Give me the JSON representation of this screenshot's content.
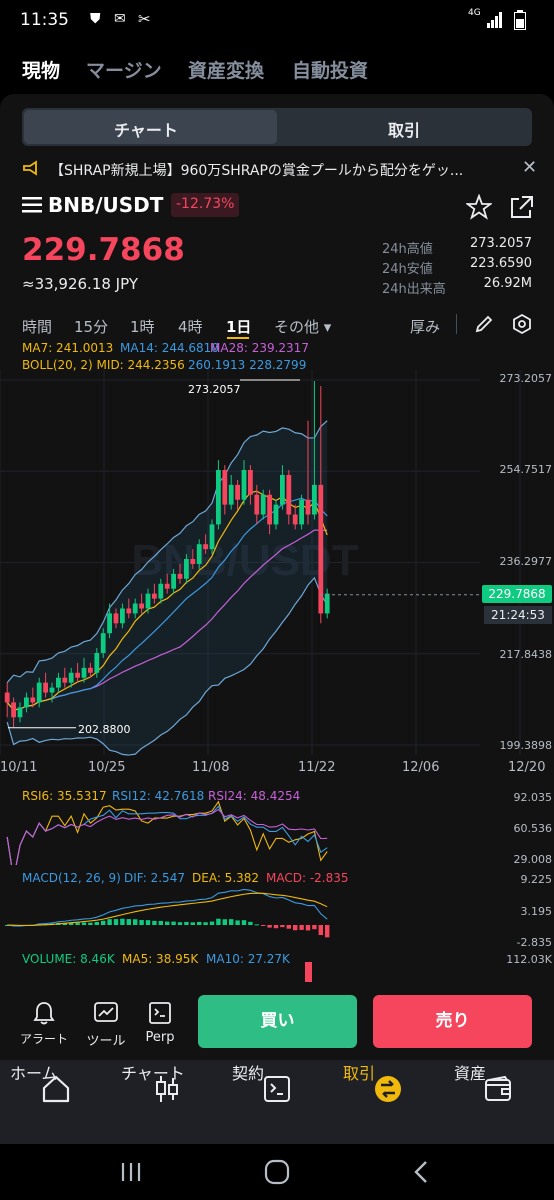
{
  "status_bar": {
    "time": "11:35",
    "network": "4G"
  },
  "top_tabs": [
    "現物",
    "マージン",
    "資産変換",
    "自動投資"
  ],
  "segment": {
    "chart": "チャート",
    "trade": "取引"
  },
  "announcement": "【SHRAP新規上場】960万SHRAPの賞金プールから配分をゲッ...",
  "pair": {
    "symbol": "BNB/USDT",
    "change": "-12.73%",
    "price": "229.7868",
    "jpy": "≈33,926.18 JPY"
  },
  "stats": [
    {
      "label": "24h高値",
      "value": "273.2057"
    },
    {
      "label": "24h安値",
      "value": "223.6590"
    },
    {
      "label": "24h出来高",
      "value": "26.92M"
    }
  ],
  "timeframes": [
    "時間",
    "15分",
    "1時",
    "4時",
    "1日",
    "その他 ▾"
  ],
  "depth_label": "厚み",
  "ma_line": {
    "ma7": "MA7: 241.0013",
    "ma14": "MA14: 244.6810",
    "ma28": "MA28: 239.2317"
  },
  "boll_line": {
    "label": "BOLL(20, 2) MID: 244.2356",
    "bands": "260.1913 228.2799"
  },
  "chart_data": {
    "type": "candlestick",
    "y_ticks": [
      "273.2057",
      "254.7517",
      "236.2977",
      "217.8438",
      "199.3898"
    ],
    "x_ticks": [
      "10/11",
      "10/25",
      "11/08",
      "11/22",
      "12/06",
      "12/20"
    ],
    "high_marker": "273.2057",
    "low_marker": "202.8800",
    "last_price": "229.7868",
    "countdown": "21:24:53",
    "watermark": "BNB/USDT",
    "candles": [
      {
        "o": 210,
        "c": 208,
        "h": 212,
        "l": 205
      },
      {
        "o": 208,
        "c": 205,
        "h": 209,
        "l": 203
      },
      {
        "o": 205,
        "c": 207,
        "h": 208,
        "l": 204
      },
      {
        "o": 207,
        "c": 209,
        "h": 210,
        "l": 206
      },
      {
        "o": 209,
        "c": 208,
        "h": 211,
        "l": 207
      },
      {
        "o": 208,
        "c": 212,
        "h": 213,
        "l": 207
      },
      {
        "o": 212,
        "c": 210,
        "h": 214,
        "l": 209
      },
      {
        "o": 210,
        "c": 211,
        "h": 212,
        "l": 208
      },
      {
        "o": 211,
        "c": 213,
        "h": 214,
        "l": 210
      },
      {
        "o": 213,
        "c": 212,
        "h": 215,
        "l": 211
      },
      {
        "o": 212,
        "c": 214,
        "h": 215,
        "l": 211
      },
      {
        "o": 214,
        "c": 213,
        "h": 216,
        "l": 212
      },
      {
        "o": 213,
        "c": 215,
        "h": 217,
        "l": 212
      },
      {
        "o": 215,
        "c": 214,
        "h": 216,
        "l": 213
      },
      {
        "o": 214,
        "c": 218,
        "h": 219,
        "l": 213
      },
      {
        "o": 218,
        "c": 222,
        "h": 223,
        "l": 217
      },
      {
        "o": 222,
        "c": 226,
        "h": 228,
        "l": 221
      },
      {
        "o": 226,
        "c": 224,
        "h": 227,
        "l": 223
      },
      {
        "o": 224,
        "c": 227,
        "h": 228,
        "l": 223
      },
      {
        "o": 227,
        "c": 226,
        "h": 229,
        "l": 225
      },
      {
        "o": 226,
        "c": 228,
        "h": 229,
        "l": 225
      },
      {
        "o": 228,
        "c": 227,
        "h": 230,
        "l": 226
      },
      {
        "o": 227,
        "c": 230,
        "h": 231,
        "l": 226
      },
      {
        "o": 230,
        "c": 229,
        "h": 232,
        "l": 228
      },
      {
        "o": 229,
        "c": 232,
        "h": 233,
        "l": 228
      },
      {
        "o": 232,
        "c": 231,
        "h": 234,
        "l": 230
      },
      {
        "o": 231,
        "c": 234,
        "h": 235,
        "l": 230
      },
      {
        "o": 234,
        "c": 233,
        "h": 236,
        "l": 232
      },
      {
        "o": 233,
        "c": 237,
        "h": 238,
        "l": 232
      },
      {
        "o": 237,
        "c": 236,
        "h": 239,
        "l": 235
      },
      {
        "o": 236,
        "c": 240,
        "h": 241,
        "l": 235
      },
      {
        "o": 240,
        "c": 239,
        "h": 242,
        "l": 238
      },
      {
        "o": 239,
        "c": 244,
        "h": 245,
        "l": 238
      },
      {
        "o": 244,
        "c": 255,
        "h": 257,
        "l": 243
      },
      {
        "o": 255,
        "c": 248,
        "h": 256,
        "l": 246
      },
      {
        "o": 248,
        "c": 252,
        "h": 254,
        "l": 247
      },
      {
        "o": 252,
        "c": 249,
        "h": 253,
        "l": 247
      },
      {
        "o": 249,
        "c": 255,
        "h": 257,
        "l": 248
      },
      {
        "o": 255,
        "c": 250,
        "h": 256,
        "l": 248
      },
      {
        "o": 250,
        "c": 246,
        "h": 252,
        "l": 244
      },
      {
        "o": 246,
        "c": 250,
        "h": 251,
        "l": 245
      },
      {
        "o": 250,
        "c": 244,
        "h": 251,
        "l": 242
      },
      {
        "o": 244,
        "c": 248,
        "h": 249,
        "l": 243
      },
      {
        "o": 248,
        "c": 254,
        "h": 256,
        "l": 247
      },
      {
        "o": 254,
        "c": 246,
        "h": 255,
        "l": 244
      },
      {
        "o": 246,
        "c": 244,
        "h": 248,
        "l": 243
      },
      {
        "o": 244,
        "c": 249,
        "h": 250,
        "l": 243
      },
      {
        "o": 249,
        "c": 246,
        "h": 265,
        "l": 244
      },
      {
        "o": 246,
        "c": 252,
        "h": 273,
        "l": 245
      },
      {
        "o": 252,
        "c": 226,
        "h": 272,
        "l": 224
      },
      {
        "o": 226,
        "c": 230,
        "h": 231,
        "l": 225
      }
    ]
  },
  "rsi_line": {
    "rsi6": "RSI6: 35.5317",
    "rsi12": "RSI12: 42.7618",
    "rsi24": "RSI24: 48.4254"
  },
  "rsi_ticks": [
    "92.035",
    "60.536",
    "29.008"
  ],
  "macd_line": {
    "label": "MACD(12, 26, 9)",
    "dif": "DIF: 2.547",
    "dea": "DEA: 5.382",
    "macd": "MACD: -2.835"
  },
  "macd_ticks": [
    "9.225",
    "3.195",
    "-2.835"
  ],
  "volume_line": {
    "vol": "VOLUME: 8.46K",
    "ma5": "MA5: 38.95K",
    "ma10": "MA10: 27.27K"
  },
  "volume_tick": "112.03K",
  "tools": [
    "アラート",
    "ツール",
    "Perp"
  ],
  "buy_label": "買い",
  "sell_label": "売り",
  "bottom_nav": [
    "ホーム",
    "チャート",
    "契約",
    "取引",
    "資産"
  ],
  "colors": {
    "up": "#0ecb81",
    "down": "#f6465d",
    "accent": "#f0b90b"
  }
}
